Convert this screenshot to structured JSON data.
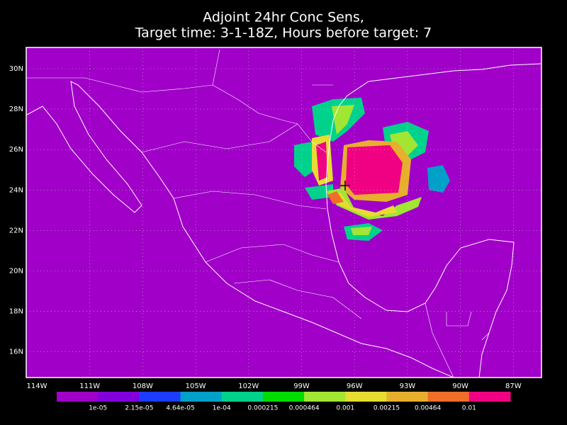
{
  "title": [
    "Adjoint 24hr Conc Sens,",
    "Target time: 3-1-18Z, Hours before target: 7"
  ],
  "lat_labels": [
    "30N",
    "28N",
    "26N",
    "24N",
    "22N",
    "20N",
    "18N",
    "16N"
  ],
  "lon_labels": [
    "114W",
    "111W",
    "108W",
    "105W",
    "102W",
    "99W",
    "96W",
    "93W",
    "90W",
    "87W"
  ],
  "colorbar": {
    "colors": [
      "#a000c8",
      "#8200dc",
      "#1e3cff",
      "#00a0c8",
      "#00d28c",
      "#00dc00",
      "#a0e632",
      "#e6dc32",
      "#e6af2d",
      "#f06e28",
      "#f00082"
    ],
    "labels": [
      "1e-05",
      "2.15e-05",
      "4.64e-05",
      "1e-04",
      "0.000215",
      "0.000464",
      "0.001",
      "0.00215",
      "0.00464",
      "0.01"
    ]
  }
}
